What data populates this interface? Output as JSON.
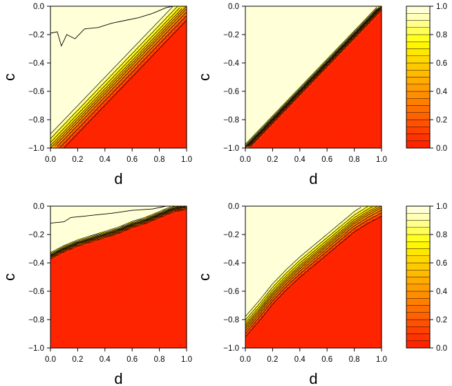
{
  "figure": {
    "type": "filled contour plots (2x2 grid) with colour keys",
    "colors": {
      "low": "#ff2a00",
      "high": "#ffffe6",
      "contour_line": "#000000",
      "band_palette": [
        "#ff2400",
        "#ff3300",
        "#ff4200",
        "#ff5100",
        "#ff6000",
        "#ff6f00",
        "#ff7e00",
        "#ff8d00",
        "#ff9c00",
        "#ffab00",
        "#ffba00",
        "#ffc900",
        "#ffd800",
        "#ffe700",
        "#fff600",
        "#ffff20",
        "#ffff55",
        "#ffff8a",
        "#ffffb5",
        "#ffffd8"
      ]
    }
  },
  "chart_data": [
    {
      "type": "heatmap",
      "panel": "top-left",
      "xlabel": "d",
      "ylabel": "c",
      "xlim": [
        0.0,
        1.0
      ],
      "ylim": [
        -1.0,
        0.0
      ],
      "xticks": [
        "0.0",
        "0.2",
        "0.4",
        "0.6",
        "0.8",
        "1.0"
      ],
      "yticks": [
        "0.0",
        "−0.2",
        "−0.4",
        "−0.6",
        "−0.8",
        "−1.0"
      ],
      "value_low": 0.0,
      "value_high": 1.0,
      "transition_width": 0.22,
      "contour_line": [
        [
          0.0,
          -0.19
        ],
        [
          0.05,
          -0.18
        ],
        [
          0.08,
          -0.28
        ],
        [
          0.12,
          -0.2
        ],
        [
          0.18,
          -0.23
        ],
        [
          0.25,
          -0.16
        ],
        [
          0.35,
          -0.15
        ],
        [
          0.45,
          -0.12
        ],
        [
          0.55,
          -0.1
        ],
        [
          0.65,
          -0.08
        ],
        [
          0.75,
          -0.05
        ],
        [
          0.85,
          -0.01
        ],
        [
          0.9,
          0.0
        ]
      ]
    },
    {
      "type": "heatmap",
      "panel": "top-right",
      "xlabel": "d",
      "ylabel": "c",
      "xlim": [
        0.0,
        1.0
      ],
      "ylim": [
        -1.0,
        0.0
      ],
      "xticks": [
        "0.0",
        "0.2",
        "0.4",
        "0.6",
        "0.8",
        "1.0"
      ],
      "yticks": [
        "0.0",
        "−0.2",
        "−0.4",
        "−0.6",
        "−0.8",
        "−1.0"
      ],
      "value_low": 0.0,
      "value_high": 1.0,
      "transition_width": 0.06
    },
    {
      "type": "colorbar",
      "panel": "top-colorbar",
      "range": [
        0.0,
        1.0
      ],
      "ticks": [
        "1.0",
        "0.8",
        "0.6",
        "0.4",
        "0.2",
        "0.0"
      ]
    },
    {
      "type": "heatmap",
      "panel": "bottom-left",
      "xlabel": "d",
      "ylabel": "c",
      "xlim": [
        0.0,
        1.0
      ],
      "ylim": [
        -1.0,
        0.0
      ],
      "xticks": [
        "0.0",
        "0.2",
        "0.4",
        "0.6",
        "0.8",
        "1.0"
      ],
      "yticks": [
        "0.0",
        "−0.2",
        "−0.4",
        "−0.6",
        "−0.8",
        "−1.0"
      ],
      "value_low": 0.0,
      "value_high": 1.0,
      "boundary": [
        [
          0.0,
          -0.35
        ],
        [
          0.1,
          -0.3
        ],
        [
          0.2,
          -0.26
        ],
        [
          0.3,
          -0.23
        ],
        [
          0.4,
          -0.2
        ],
        [
          0.5,
          -0.17
        ],
        [
          0.6,
          -0.13
        ],
        [
          0.7,
          -0.1
        ],
        [
          0.8,
          -0.06
        ],
        [
          0.9,
          -0.02
        ],
        [
          1.0,
          0.0
        ]
      ],
      "transition_width": 0.05,
      "contour_line": [
        [
          0.0,
          -0.12
        ],
        [
          0.1,
          -0.11
        ],
        [
          0.15,
          -0.08
        ],
        [
          0.25,
          -0.07
        ],
        [
          0.35,
          -0.06
        ],
        [
          0.45,
          -0.05
        ],
        [
          0.6,
          -0.03
        ],
        [
          0.75,
          -0.02
        ],
        [
          0.85,
          0.0
        ]
      ]
    },
    {
      "type": "heatmap",
      "panel": "bottom-right",
      "xlabel": "d",
      "ylabel": "c",
      "xlim": [
        0.0,
        1.0
      ],
      "ylim": [
        -1.0,
        0.0
      ],
      "xticks": [
        "0.0",
        "0.2",
        "0.4",
        "0.6",
        "0.8",
        "1.0"
      ],
      "yticks": [
        "0.0",
        "−0.2",
        "−0.4",
        "−0.6",
        "−0.8",
        "−1.0"
      ],
      "value_low": 0.0,
      "value_high": 1.0,
      "boundary": [
        [
          0.0,
          -0.85
        ],
        [
          0.1,
          -0.74
        ],
        [
          0.2,
          -0.62
        ],
        [
          0.3,
          -0.52
        ],
        [
          0.4,
          -0.43
        ],
        [
          0.5,
          -0.35
        ],
        [
          0.6,
          -0.27
        ],
        [
          0.7,
          -0.19
        ],
        [
          0.8,
          -0.11
        ],
        [
          0.9,
          -0.05
        ],
        [
          1.0,
          0.0
        ]
      ],
      "transition_width": 0.16
    },
    {
      "type": "colorbar",
      "panel": "bottom-colorbar",
      "range": [
        0.0,
        1.0
      ],
      "ticks": [
        "1.0",
        "0.8",
        "0.6",
        "0.4",
        "0.2",
        "0.0"
      ]
    }
  ]
}
